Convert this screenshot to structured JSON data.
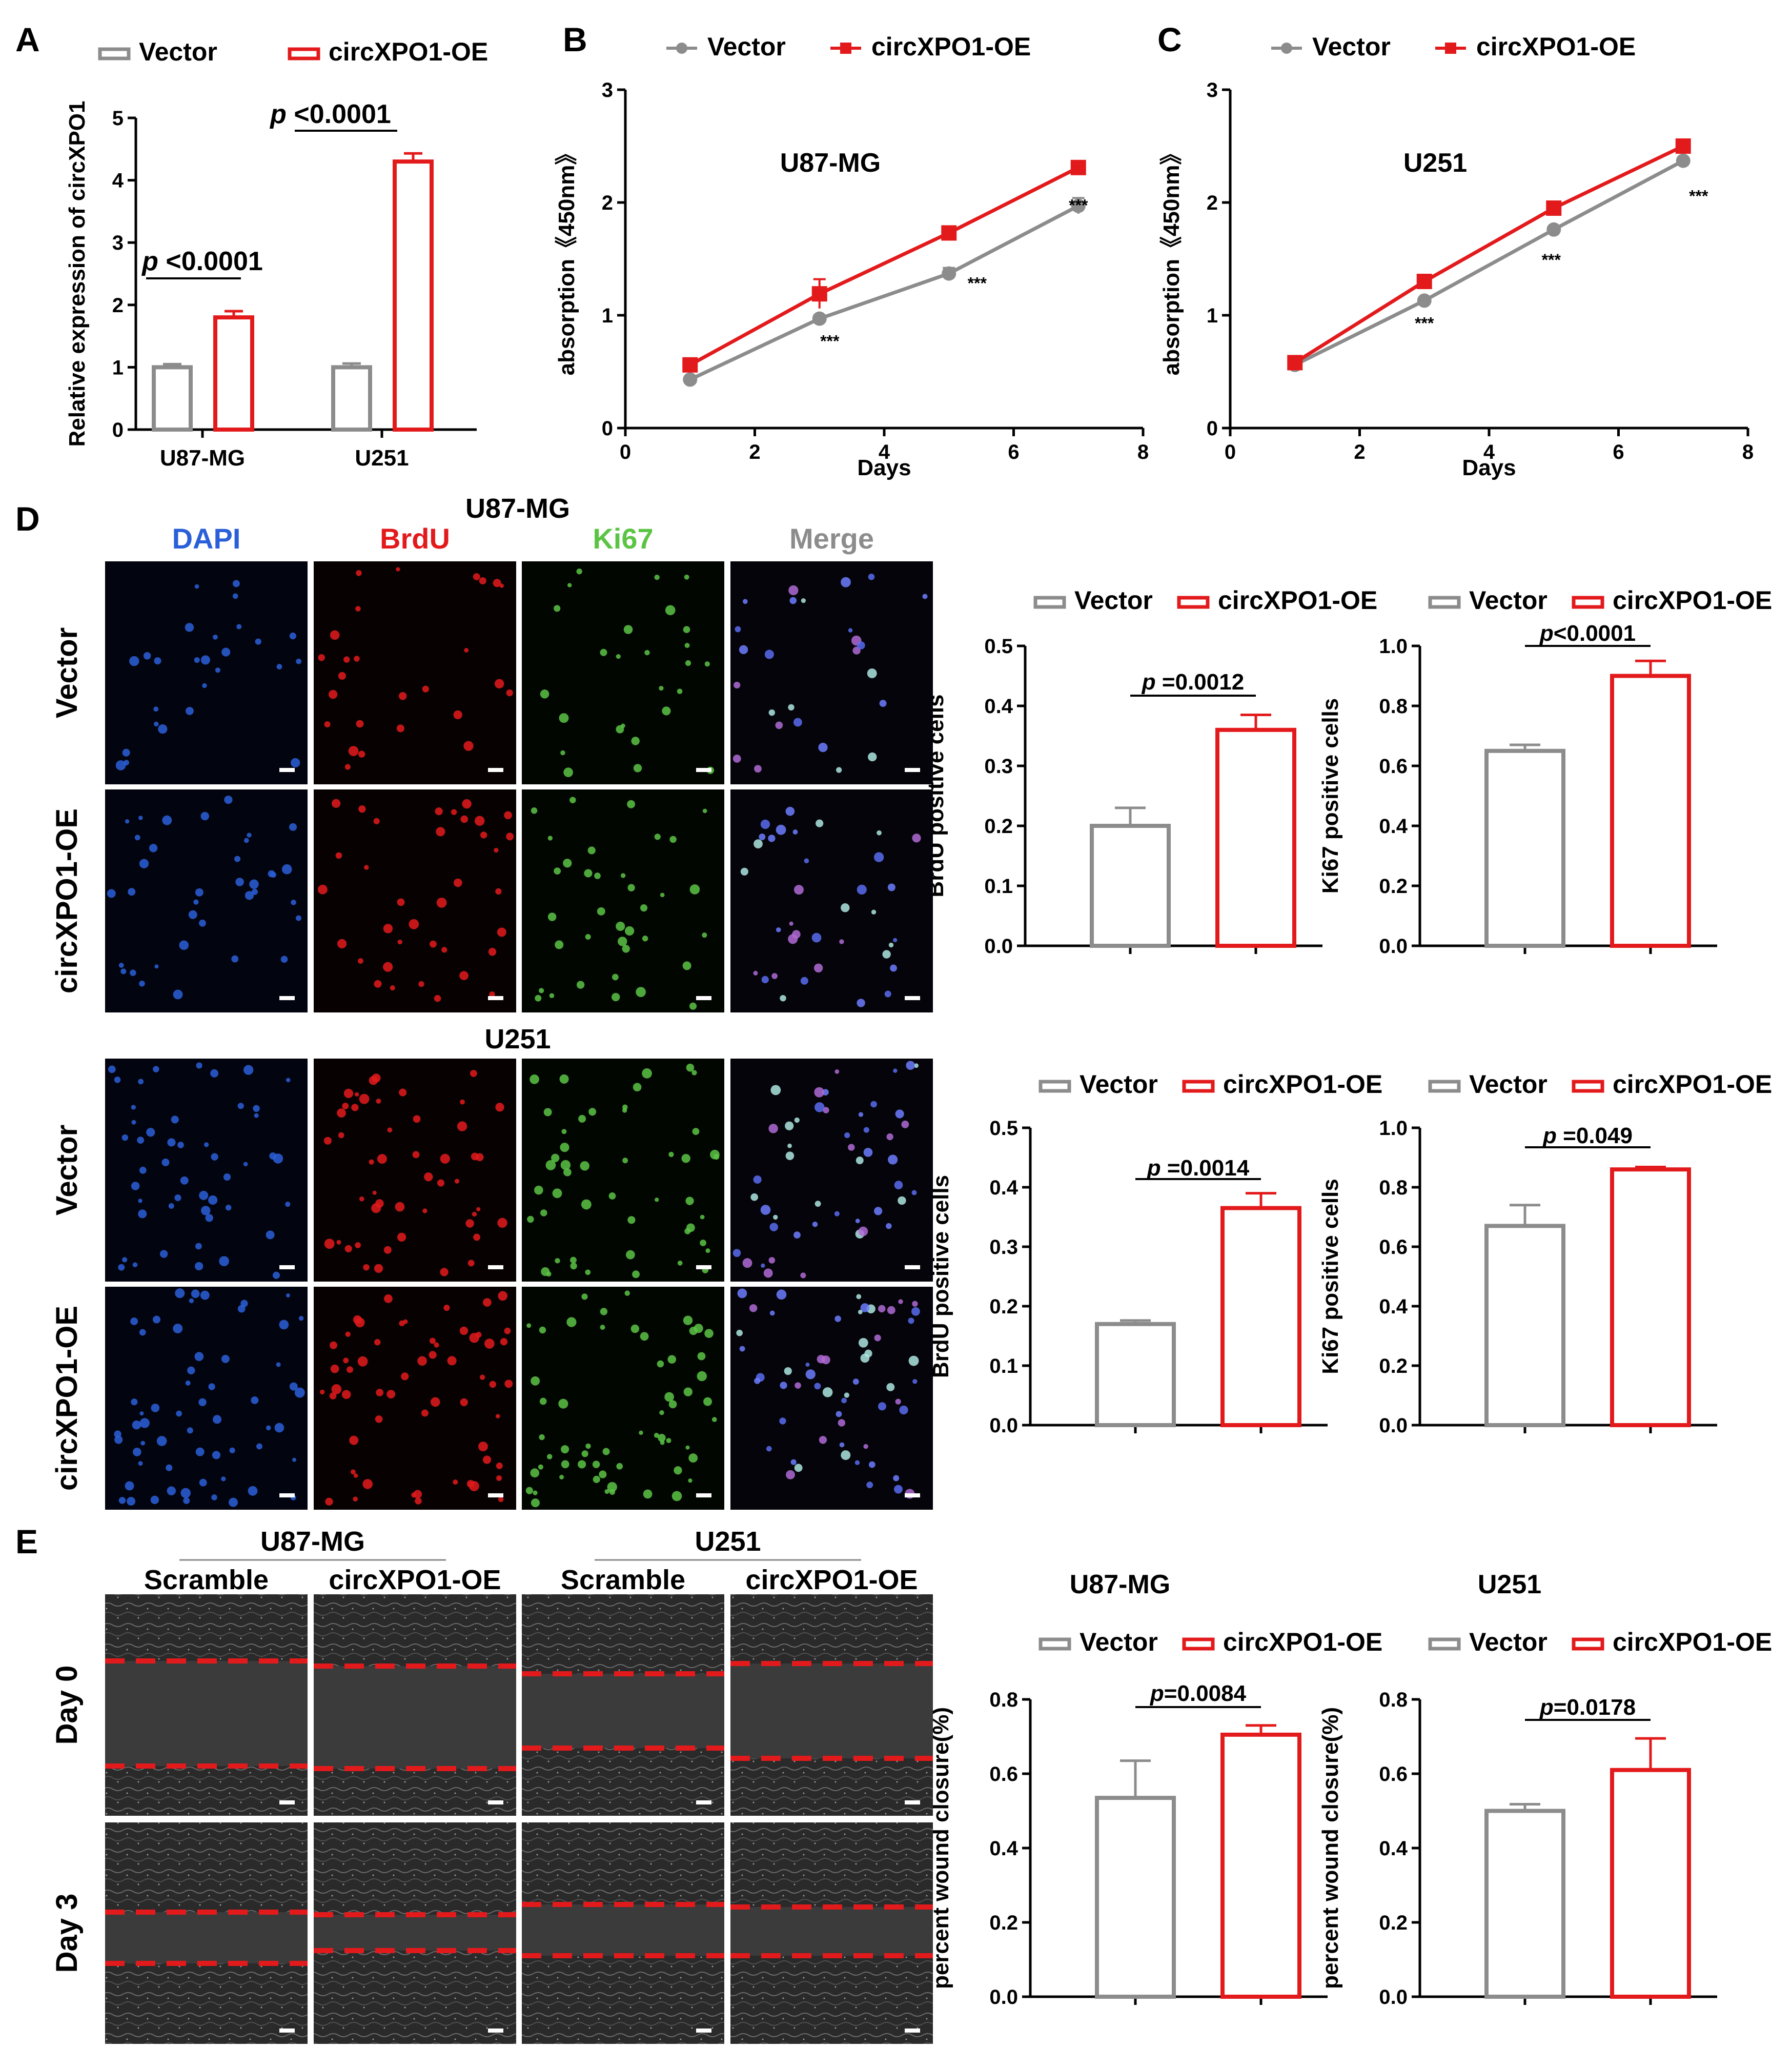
{
  "colors": {
    "vector": "#8c8c8c",
    "oe": "#e31a1c",
    "dapi": "#2b5fd9",
    "brdu": "#e31a1c",
    "ki67": "#5cc445",
    "merge": "#8c8c8c"
  },
  "panels": {
    "A": "A",
    "B": "B",
    "C": "C",
    "D": "D",
    "E": "E"
  },
  "legend": {
    "vector": "Vector",
    "oe": "circXPO1-OE"
  },
  "chart_data": [
    {
      "id": "A",
      "type": "bar",
      "title": "",
      "categories": [
        "U87-MG",
        "U251"
      ],
      "series": [
        {
          "name": "Vector",
          "values": [
            1.0,
            1.0
          ],
          "errors": [
            0.05,
            0.06
          ]
        },
        {
          "name": "circXPO1-OE",
          "values": [
            1.8,
            4.3
          ],
          "errors": [
            0.1,
            0.13
          ]
        }
      ],
      "ylabel": "Relative expression of circXPO1",
      "xlabel": "",
      "ylim": [
        0,
        5
      ],
      "yticks": [
        "0",
        "1",
        "2",
        "3",
        "4",
        "5"
      ],
      "annotations": [
        {
          "italic": "p",
          "text": " <0.0001",
          "group": 0
        },
        {
          "italic": "p",
          "text": " <0.0001",
          "group": 1
        }
      ]
    },
    {
      "id": "B",
      "type": "line",
      "title": "U87-MG",
      "x": [
        1,
        3,
        5,
        7
      ],
      "series": [
        {
          "name": "Vector",
          "values": [
            0.43,
            0.97,
            1.37,
            1.97
          ],
          "errors": [
            0.02,
            0.03,
            0.05,
            0.07
          ]
        },
        {
          "name": "circXPO1-OE",
          "values": [
            0.56,
            1.19,
            1.73,
            2.31
          ],
          "errors": [
            0.04,
            0.13,
            0.03,
            0.05
          ]
        }
      ],
      "xlabel": "Days",
      "ylabel": "absorption《450nm》",
      "xlim": [
        0,
        8
      ],
      "ylim": [
        0,
        3
      ],
      "xticks": [
        "0",
        "2",
        "4",
        "6",
        "8"
      ],
      "yticks": [
        "0",
        "1",
        "2",
        "3"
      ],
      "stars": [
        "***",
        "***",
        "***"
      ]
    },
    {
      "id": "C",
      "type": "line",
      "title": "U251",
      "x": [
        1,
        3,
        5,
        7
      ],
      "series": [
        {
          "name": "Vector",
          "values": [
            0.56,
            1.13,
            1.76,
            2.37
          ],
          "errors": [
            0.02,
            0.02,
            0.02,
            0.02
          ]
        },
        {
          "name": "circXPO1-OE",
          "values": [
            0.58,
            1.3,
            1.95,
            2.5
          ],
          "errors": [
            0.02,
            0.02,
            0.02,
            0.02
          ]
        }
      ],
      "xlabel": "Days",
      "ylabel": "absorption《450nm》",
      "xlim": [
        0,
        8
      ],
      "ylim": [
        0,
        3
      ],
      "xticks": [
        "0",
        "2",
        "4",
        "6",
        "8"
      ],
      "yticks": [
        "0",
        "1",
        "2",
        "3"
      ],
      "stars": [
        "***",
        "***",
        "***"
      ]
    },
    {
      "id": "D1",
      "type": "bar",
      "title": "",
      "categories": [
        "Vector",
        "circXPO1-OE"
      ],
      "values": [
        0.2,
        0.36
      ],
      "errors": [
        0.03,
        0.025
      ],
      "ylabel": "BrdU positive cells",
      "ylim": [
        0,
        0.5
      ],
      "yticks": [
        "0.0",
        "0.1",
        "0.2",
        "0.3",
        "0.4",
        "0.5"
      ],
      "annotation": {
        "italic": "p",
        "text": " =0.0012"
      }
    },
    {
      "id": "D2",
      "type": "bar",
      "title": "",
      "categories": [
        "Vector",
        "circXPO1-OE"
      ],
      "values": [
        0.65,
        0.9
      ],
      "errors": [
        0.02,
        0.05
      ],
      "ylabel": "Ki67 positive cells",
      "ylim": [
        0,
        1.0
      ],
      "yticks": [
        "0.0",
        "0.2",
        "0.4",
        "0.6",
        "0.8",
        "1.0"
      ],
      "annotation": {
        "italic": "p",
        "text": "<0.0001"
      }
    },
    {
      "id": "D3",
      "type": "bar",
      "title": "",
      "categories": [
        "Vector",
        "circXPO1-OE"
      ],
      "values": [
        0.17,
        0.365
      ],
      "errors": [
        0.006,
        0.025
      ],
      "ylabel": "BrdU positive cells",
      "ylim": [
        0,
        0.5
      ],
      "yticks": [
        "0.0",
        "0.1",
        "0.2",
        "0.3",
        "0.4",
        "0.5"
      ],
      "annotation": {
        "italic": "p",
        "text": " =0.0014"
      }
    },
    {
      "id": "D4",
      "type": "bar",
      "title": "",
      "categories": [
        "Vector",
        "circXPO1-OE"
      ],
      "values": [
        0.67,
        0.86
      ],
      "errors": [
        0.07,
        0.008
      ],
      "ylabel": "Ki67 positive cells",
      "ylim": [
        0,
        1.0
      ],
      "yticks": [
        "0.0",
        "0.2",
        "0.4",
        "0.6",
        "0.8",
        "1.0"
      ],
      "annotation": {
        "italic": "p",
        "text": " =0.049"
      }
    },
    {
      "id": "E1",
      "type": "bar",
      "title": "U87-MG",
      "categories": [
        "Vector",
        "circXPO1-OE"
      ],
      "values": [
        0.535,
        0.705
      ],
      "errors": [
        0.1,
        0.025
      ],
      "ylabel": "percent wound closure(%)",
      "ylim": [
        0,
        0.8
      ],
      "yticks": [
        "0.0",
        "0.2",
        "0.4",
        "0.6",
        "0.8"
      ],
      "annotation": {
        "italic": "p",
        "text": "=0.0084"
      }
    },
    {
      "id": "E2",
      "type": "bar",
      "title": "U251",
      "categories": [
        "Vector",
        "circXPO1-OE"
      ],
      "values": [
        0.5,
        0.61
      ],
      "errors": [
        0.018,
        0.085
      ],
      "ylabel": "percent wound closure(%)",
      "ylim": [
        0,
        0.8
      ],
      "yticks": [
        "0.0",
        "0.2",
        "0.4",
        "0.6",
        "0.8"
      ],
      "annotation": {
        "italic": "p",
        "text": "=0.0178"
      }
    }
  ],
  "microscopy_D": {
    "columns": [
      "DAPI",
      "BrdU",
      "Ki67",
      "Merge"
    ],
    "sections": [
      {
        "title": "U87-MG",
        "rows": [
          "Vector",
          "circXPO1-OE"
        ]
      },
      {
        "title": "U251",
        "rows": [
          "Vector",
          "circXPO1-OE"
        ]
      }
    ]
  },
  "microscopy_E": {
    "groups": [
      {
        "title": "U87-MG",
        "cols": [
          "Scramble",
          "circXPO1-OE"
        ]
      },
      {
        "title": "U251",
        "cols": [
          "Scramble",
          "circXPO1-OE"
        ]
      }
    ],
    "rows": [
      "Day 0",
      "Day 3"
    ]
  }
}
